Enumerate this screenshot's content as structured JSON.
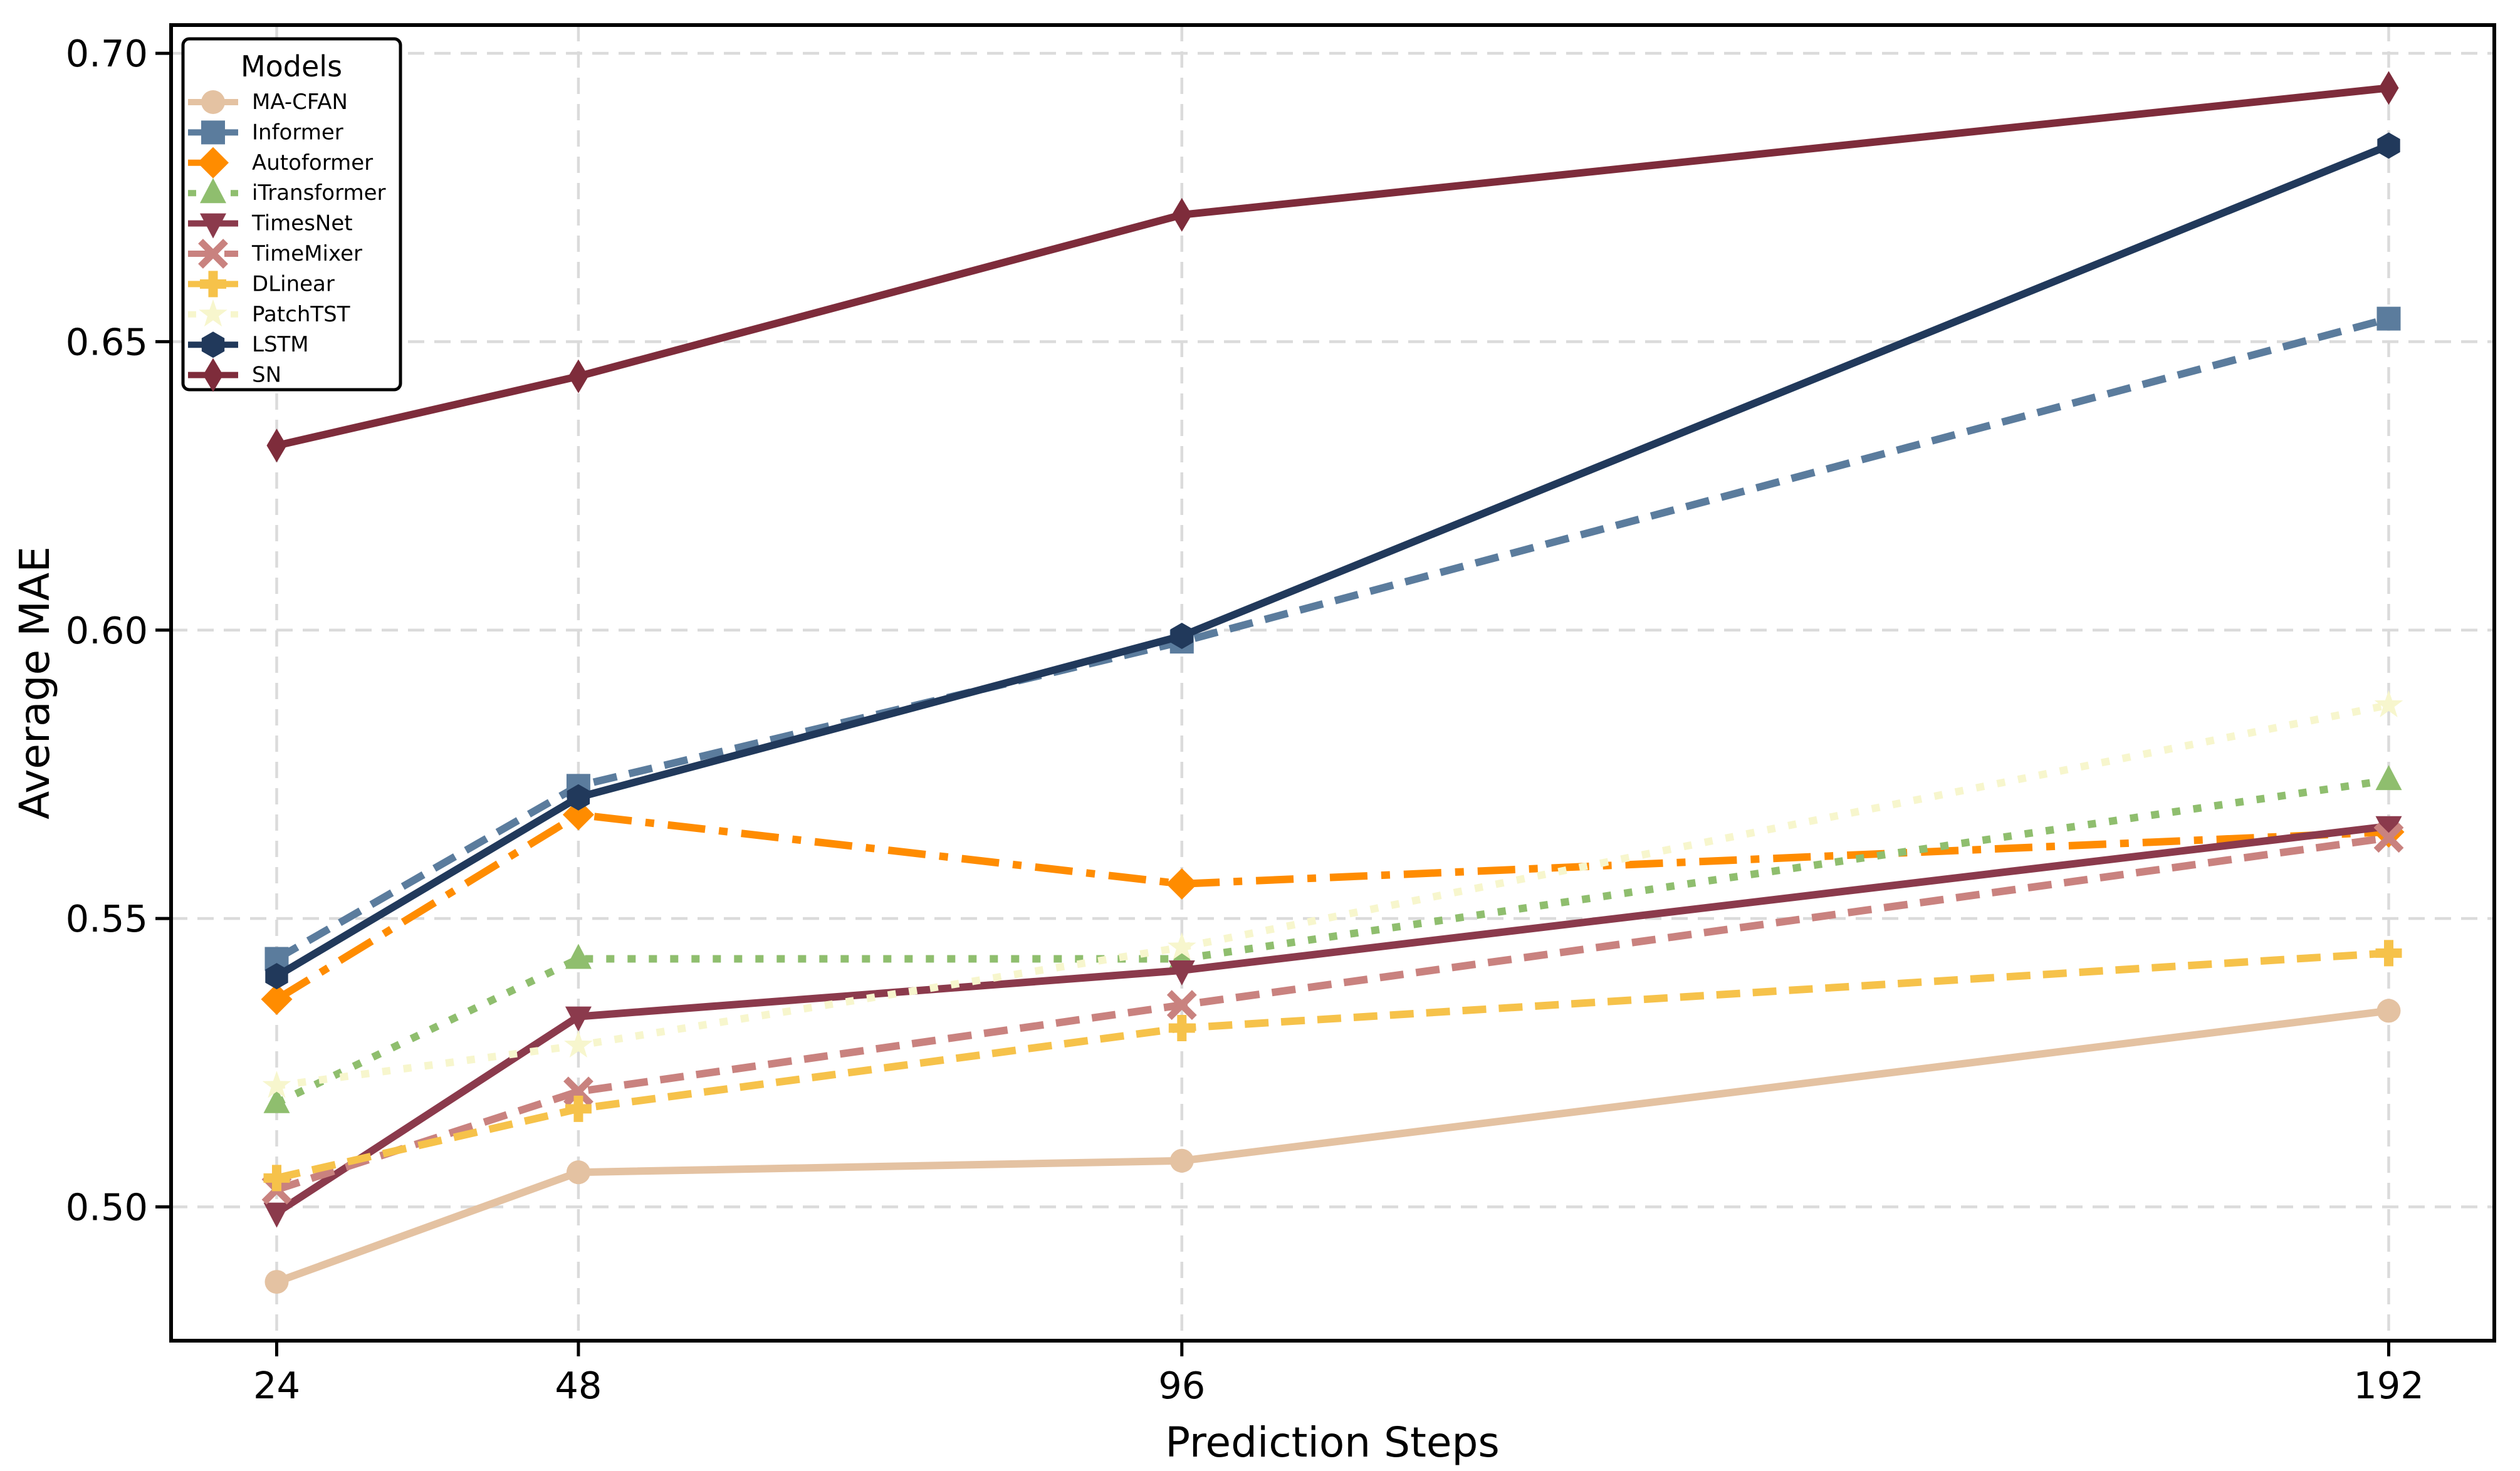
{
  "figure": {
    "background": "#ffffff",
    "grid_color": "#dbdbdb",
    "axis_color": "#000000"
  },
  "chart_data": {
    "type": "line",
    "title": "",
    "xlabel": "Prediction Steps",
    "ylabel": "Average MAE",
    "x": [
      24,
      48,
      96,
      192
    ],
    "x_tick_labels": [
      "24",
      "48",
      "96",
      "192"
    ],
    "y_ticks": [
      0.5,
      0.55,
      0.6,
      0.65,
      0.7
    ],
    "y_tick_labels": [
      "0.50",
      "0.55",
      "0.60",
      "0.65",
      "0.70"
    ],
    "xlim": [
      15.6,
      200.4
    ],
    "ylim": [
      0.4768,
      0.7049
    ],
    "grid": true,
    "legend": {
      "title": "Models",
      "position": "upper-left"
    },
    "series": [
      {
        "name": "MA-CFAN",
        "color": "#e4c2a2",
        "linestyle": "solid",
        "marker": "circle",
        "values": [
          0.487,
          0.506,
          0.508,
          0.534
        ]
      },
      {
        "name": "Informer",
        "color": "#5b7c9d",
        "linestyle": "dashed",
        "marker": "square",
        "values": [
          0.543,
          0.573,
          0.598,
          0.654
        ]
      },
      {
        "name": "Autoformer",
        "color": "#ff8c00",
        "linestyle": "dashdot",
        "marker": "diamond",
        "values": [
          0.536,
          0.568,
          0.556,
          0.565
        ]
      },
      {
        "name": "iTransformer",
        "color": "#8fbe6e",
        "linestyle": "dotted",
        "marker": "triangle-up",
        "values": [
          0.518,
          0.543,
          0.543,
          0.574
        ]
      },
      {
        "name": "TimesNet",
        "color": "#8b3a4c",
        "linestyle": "solid",
        "marker": "triangle-down",
        "values": [
          0.499,
          0.533,
          0.541,
          0.566
        ]
      },
      {
        "name": "TimeMixer",
        "color": "#c9827f",
        "linestyle": "dashed",
        "marker": "x",
        "values": [
          0.503,
          0.52,
          0.535,
          0.564
        ]
      },
      {
        "name": "DLinear",
        "color": "#f6c24a",
        "linestyle": "dashed",
        "marker": "plus",
        "values": [
          0.505,
          0.517,
          0.531,
          0.544
        ]
      },
      {
        "name": "PatchTST",
        "color": "#f7f6cd",
        "linestyle": "dotted",
        "marker": "star",
        "values": [
          0.521,
          0.528,
          0.545,
          0.587
        ]
      },
      {
        "name": "LSTM",
        "color": "#21395b",
        "linestyle": "solid",
        "marker": "hexagon",
        "values": [
          0.54,
          0.571,
          0.599,
          0.684
        ]
      },
      {
        "name": "SN",
        "color": "#7e2c3b",
        "linestyle": "solid",
        "marker": "thin-diamond",
        "values": [
          0.632,
          0.644,
          0.672,
          0.694
        ]
      }
    ]
  }
}
